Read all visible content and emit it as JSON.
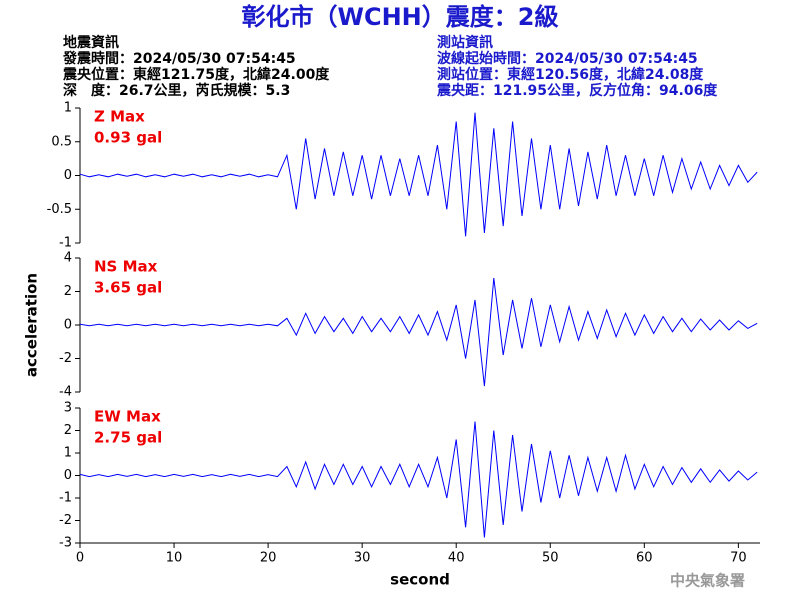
{
  "title": "彰化市（WCHH）震度：2級",
  "info_left": [
    "地震資訊",
    "發震時間：2024/05/30 07:54:45",
    "震央位置：東經121.75度，北緯24.00度",
    "深　度：26.7公里，芮氏規模：5.3"
  ],
  "info_right": [
    "測站資訊",
    "波線起始時間：2024/05/30 07:54:45",
    "測站位置：東經120.56度，北緯24.08度",
    "震央距：121.95公里，反方位角：94.06度"
  ],
  "footer": "中央氣象署",
  "chart_data": [
    {
      "type": "line",
      "annotation": [
        "Z Max",
        "0.93 gal"
      ],
      "color": "#0000ff",
      "x": [
        0,
        1,
        2,
        3,
        4,
        5,
        6,
        7,
        8,
        9,
        10,
        11,
        12,
        13,
        14,
        15,
        16,
        17,
        18,
        19,
        20,
        21,
        22,
        23,
        24,
        25,
        26,
        27,
        28,
        29,
        30,
        31,
        32,
        33,
        34,
        35,
        36,
        37,
        38,
        39,
        40,
        41,
        42,
        43,
        44,
        45,
        46,
        47,
        48,
        49,
        50,
        51,
        52,
        53,
        54,
        55,
        56,
        57,
        58,
        59,
        60,
        61,
        62,
        63,
        64,
        65,
        66,
        67,
        68,
        69,
        70,
        71,
        72
      ],
      "values": [
        0.02,
        -0.02,
        0.01,
        -0.02,
        0.02,
        -0.01,
        0.02,
        -0.02,
        0.01,
        -0.02,
        0.02,
        -0.01,
        0.02,
        -0.02,
        0.01,
        -0.02,
        0.02,
        -0.01,
        0.02,
        -0.02,
        0.01,
        -0.02,
        0.3,
        -0.5,
        0.55,
        -0.35,
        0.4,
        -0.3,
        0.35,
        -0.3,
        0.3,
        -0.35,
        0.3,
        -0.3,
        0.25,
        -0.3,
        0.3,
        -0.3,
        0.45,
        -0.5,
        0.8,
        -0.9,
        0.93,
        -0.85,
        0.7,
        -0.75,
        0.8,
        -0.6,
        0.55,
        -0.5,
        0.45,
        -0.5,
        0.4,
        -0.45,
        0.35,
        -0.35,
        0.45,
        -0.3,
        0.3,
        -0.3,
        0.25,
        -0.3,
        0.3,
        -0.25,
        0.25,
        -0.2,
        0.2,
        -0.2,
        0.15,
        -0.15,
        0.15,
        -0.1,
        0.05
      ],
      "xlim": [
        0,
        72.3
      ],
      "ylim": [
        -1,
        1
      ],
      "yticks": [
        -1,
        -0.5,
        0,
        0.5,
        1
      ]
    },
    {
      "type": "line",
      "annotation": [
        "NS Max",
        "3.65 gal"
      ],
      "color": "#0000ff",
      "ylabel": "acceleration",
      "x": [
        0,
        1,
        2,
        3,
        4,
        5,
        6,
        7,
        8,
        9,
        10,
        11,
        12,
        13,
        14,
        15,
        16,
        17,
        18,
        19,
        20,
        21,
        22,
        23,
        24,
        25,
        26,
        27,
        28,
        29,
        30,
        31,
        32,
        33,
        34,
        35,
        36,
        37,
        38,
        39,
        40,
        41,
        42,
        43,
        44,
        45,
        46,
        47,
        48,
        49,
        50,
        51,
        52,
        53,
        54,
        55,
        56,
        57,
        58,
        59,
        60,
        61,
        62,
        63,
        64,
        65,
        66,
        67,
        68,
        69,
        70,
        71,
        72
      ],
      "values": [
        0.05,
        -0.05,
        0.04,
        -0.05,
        0.05,
        -0.04,
        0.05,
        -0.05,
        0.04,
        -0.05,
        0.05,
        -0.04,
        0.05,
        -0.05,
        0.04,
        -0.05,
        0.05,
        -0.04,
        0.05,
        -0.05,
        0.04,
        -0.05,
        0.4,
        -0.6,
        0.7,
        -0.5,
        0.5,
        -0.4,
        0.4,
        -0.5,
        0.5,
        -0.4,
        0.4,
        -0.4,
        0.5,
        -0.5,
        0.6,
        -0.6,
        0.8,
        -0.9,
        1.2,
        -2.0,
        1.5,
        -3.65,
        2.8,
        -1.8,
        1.5,
        -1.4,
        1.6,
        -1.3,
        1.2,
        -1.0,
        1.1,
        -0.9,
        0.8,
        -0.8,
        0.9,
        -0.7,
        0.7,
        -0.6,
        0.6,
        -0.5,
        0.5,
        -0.4,
        0.4,
        -0.4,
        0.35,
        -0.3,
        0.3,
        -0.3,
        0.25,
        -0.2,
        0.1
      ],
      "xlim": [
        0,
        72.3
      ],
      "ylim": [
        -4,
        4
      ],
      "yticks": [
        -4,
        -2,
        0,
        2,
        4
      ]
    },
    {
      "type": "line",
      "annotation": [
        "EW Max",
        "2.75 gal"
      ],
      "color": "#0000ff",
      "xlabel": "second",
      "x": [
        0,
        1,
        2,
        3,
        4,
        5,
        6,
        7,
        8,
        9,
        10,
        11,
        12,
        13,
        14,
        15,
        16,
        17,
        18,
        19,
        20,
        21,
        22,
        23,
        24,
        25,
        26,
        27,
        28,
        29,
        30,
        31,
        32,
        33,
        34,
        35,
        36,
        37,
        38,
        39,
        40,
        41,
        42,
        43,
        44,
        45,
        46,
        47,
        48,
        49,
        50,
        51,
        52,
        53,
        54,
        55,
        56,
        57,
        58,
        59,
        60,
        61,
        62,
        63,
        64,
        65,
        66,
        67,
        68,
        69,
        70,
        71,
        72
      ],
      "values": [
        0.05,
        -0.05,
        0.04,
        -0.05,
        0.05,
        -0.04,
        0.05,
        -0.05,
        0.04,
        -0.05,
        0.05,
        -0.04,
        0.05,
        -0.05,
        0.04,
        -0.05,
        0.05,
        -0.04,
        0.05,
        -0.05,
        0.04,
        -0.05,
        0.4,
        -0.5,
        0.6,
        -0.6,
        0.5,
        -0.4,
        0.5,
        -0.4,
        0.4,
        -0.5,
        0.4,
        -0.4,
        0.5,
        -0.5,
        0.5,
        -0.5,
        0.8,
        -1.0,
        1.6,
        -2.3,
        2.4,
        -2.75,
        2.0,
        -2.2,
        1.8,
        -1.6,
        1.4,
        -1.2,
        1.1,
        -1.0,
        0.9,
        -0.9,
        0.8,
        -0.7,
        0.8,
        -0.7,
        0.9,
        -0.6,
        0.5,
        -0.5,
        0.4,
        -0.4,
        0.35,
        -0.3,
        0.3,
        -0.3,
        0.25,
        -0.25,
        0.2,
        -0.2,
        0.15
      ],
      "xlim": [
        0,
        72.3
      ],
      "ylim": [
        -3,
        3
      ],
      "yticks": [
        -3,
        -2,
        -1,
        0,
        1,
        2,
        3
      ],
      "xticks": [
        0,
        10,
        20,
        30,
        40,
        50,
        60,
        70
      ]
    }
  ]
}
